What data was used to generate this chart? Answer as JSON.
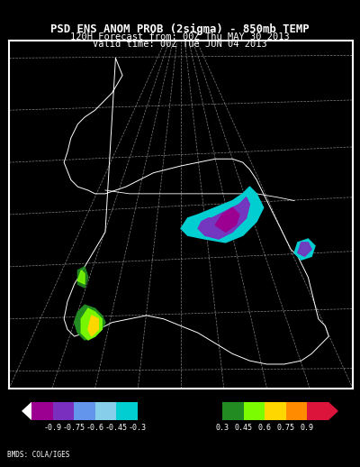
{
  "title_line1": "PSD ENS ANOM PROB (2sigma) - 850mb TEMP",
  "title_line2": "120H Forecast from: 00Z Thu MAY 30 2013",
  "title_line3": "Valid time: 00Z Tue JUN 04 2013",
  "background_color": "#000000",
  "title_color": "#ffffff",
  "attribution": "BMDS: COLA/IGES",
  "fig_width": 4.0,
  "fig_height": 5.18,
  "dpi": 100,
  "cb_colors": [
    "#9B0090",
    "#7B2FBE",
    "#6495ED",
    "#87CEEB",
    "#00CED1",
    "#000000",
    "#228B22",
    "#7CFC00",
    "#FFD700",
    "#FF8C00",
    "#DC143C"
  ],
  "cb_boundaries": [
    -1.05,
    -0.9,
    -0.75,
    -0.6,
    -0.45,
    -0.3,
    0.3,
    0.45,
    0.6,
    0.75,
    0.9,
    1.05
  ],
  "cb_tick_pos": [
    -0.9,
    -0.75,
    -0.6,
    -0.45,
    -0.3,
    0.3,
    0.45,
    0.6,
    0.75,
    0.9
  ],
  "cb_tick_lbl": [
    "-0.9",
    "-0.75",
    "-0.6",
    "-0.45",
    "-0.3",
    "0.3",
    "0.45",
    "0.6",
    "0.75",
    "0.9"
  ]
}
